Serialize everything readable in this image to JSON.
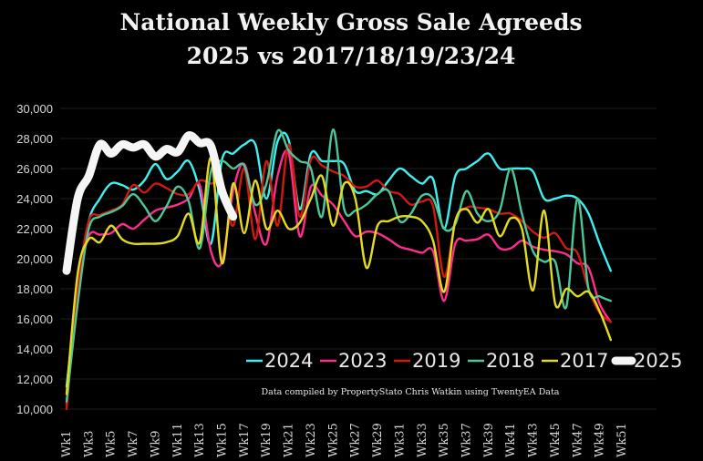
{
  "chart_data": {
    "type": "line",
    "title": "National Weekly Gross Sale Agreeds",
    "subtitle": "2025 vs 2017/18/19/23/24",
    "note": "Data compiled by PropertyStato Chris Watkin using TwentyEA Data",
    "xlabel": "",
    "ylabel": "",
    "ylim": [
      10000,
      30000
    ],
    "yticks": [
      "10,000",
      "12,000",
      "14,000",
      "16,000",
      "18,000",
      "20,000",
      "22,000",
      "24,000",
      "26,000",
      "28,000",
      "30,000"
    ],
    "ytick_values": [
      10000,
      12000,
      14000,
      16000,
      18000,
      20000,
      22000,
      24000,
      26000,
      28000,
      30000
    ],
    "xticks": [
      "Wk1",
      "Wk3",
      "Wk5",
      "Wk7",
      "Wk9",
      "Wk11",
      "Wk13",
      "Wk15",
      "Wk17",
      "Wk19",
      "Wk21",
      "Wk23",
      "Wk25",
      "Wk27",
      "Wk29",
      "Wk31",
      "Wk33",
      "Wk35",
      "Wk37",
      "Wk39",
      "Wk41",
      "Wk43",
      "Wk45",
      "Wk47",
      "Wk49",
      "Wk51"
    ],
    "xrange": [
      1,
      52
    ],
    "grid": true,
    "legend_position": "bottom-right",
    "series": [
      {
        "name": "2024",
        "color": "#3ff0f0",
        "values": [
          11500,
          18000,
          22500,
          24000,
          25000,
          24900,
          24600,
          25200,
          26300,
          25300,
          25800,
          26500,
          24500,
          21000,
          26600,
          27000,
          27600,
          27600,
          24000,
          27800,
          27900,
          23300,
          27000,
          26500,
          26500,
          26300,
          24500,
          24500,
          24300,
          25200,
          26000,
          25500,
          25000,
          25300,
          22000,
          25500,
          26000,
          26500,
          27000,
          26000,
          26000,
          26000,
          25800,
          24000,
          24000,
          24200,
          24000,
          23000,
          21000,
          19200
        ]
      },
      {
        "name": "2023",
        "color": "#ff2d8c",
        "values": [
          10300,
          18000,
          21500,
          21600,
          21700,
          22300,
          22000,
          22600,
          23200,
          23400,
          23600,
          24000,
          24900,
          20500,
          19800,
          24500,
          26300,
          23000,
          21000,
          25500,
          27000,
          21500,
          24800,
          24200,
          23600,
          22500,
          21500,
          21800,
          21700,
          21300,
          20800,
          20600,
          20400,
          20500,
          17200,
          21000,
          21200,
          21300,
          21600,
          20700,
          20700,
          21200,
          20800,
          20600,
          20500,
          20300,
          19700,
          19400,
          17000,
          15800
        ]
      },
      {
        "name": "2019",
        "color": "#d0190f",
        "values": [
          10000,
          18000,
          22500,
          22900,
          23200,
          23600,
          24900,
          24400,
          25000,
          24700,
          24300,
          24300,
          25200,
          25000,
          25000,
          22200,
          26000,
          21300,
          26500,
          22200,
          27600,
          22800,
          26600,
          26200,
          25800,
          25500,
          24800,
          24800,
          25200,
          24500,
          24300,
          23600,
          23800,
          23500,
          18800,
          22500,
          23400,
          23400,
          23300,
          23000,
          23000,
          22500,
          21800,
          21400,
          21700,
          20700,
          20400,
          18000,
          16400,
          15800
        ]
      },
      {
        "name": "2018",
        "color": "#4cc79a",
        "values": [
          10500,
          17000,
          22000,
          22800,
          23100,
          23500,
          24300,
          23500,
          22500,
          23500,
          24800,
          23800,
          20700,
          25800,
          26500,
          26000,
          26200,
          23600,
          25000,
          28500,
          27200,
          26500,
          26000,
          22800,
          28600,
          23300,
          23200,
          23600,
          24300,
          24500,
          22500,
          23000,
          24200,
          24000,
          22000,
          22300,
          24500,
          23000,
          22500,
          23200,
          26000,
          23000,
          20500,
          19800,
          19800,
          16800,
          24000,
          18000,
          17500,
          17200
        ]
      },
      {
        "name": "2017",
        "color": "#e3dc1e",
        "values": [
          11000,
          19000,
          21300,
          21100,
          22200,
          21300,
          21000,
          21000,
          21000,
          21100,
          21500,
          23000,
          21100,
          26700,
          19700,
          25000,
          21700,
          25200,
          22000,
          23200,
          22000,
          22400,
          24000,
          25500,
          22200,
          25000,
          24000,
          19400,
          22200,
          22500,
          22800,
          22800,
          22500,
          21200,
          17800,
          22500,
          23300,
          22400,
          23300,
          21500,
          22700,
          22000,
          17900,
          23200,
          17000,
          18000,
          17500,
          17800,
          16500,
          14600
        ]
      },
      {
        "name": "2025",
        "color": "#f5f5f5",
        "values": [
          19200,
          24000,
          25500,
          27600,
          27000,
          27600,
          27400,
          27600,
          26800,
          27300,
          27100,
          28200,
          27700,
          27500,
          24500,
          22800
        ]
      }
    ]
  }
}
